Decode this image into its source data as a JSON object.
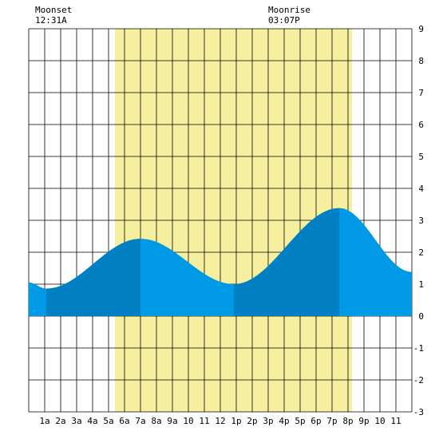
{
  "header": {
    "moonset_label": "Moonset",
    "moonset_time": "12:31A",
    "moonrise_label": "Moonrise",
    "moonrise_time": "03:07P"
  },
  "colors": {
    "daylight": "#f5ef9f",
    "tide_rising": "#0099e6",
    "tide_falling": "#0080c2",
    "grid": "#000000",
    "background": "#ffffff"
  },
  "chart_data": {
    "type": "area",
    "title": "",
    "xlabel": "",
    "ylabel": "",
    "xlim": [
      0,
      24
    ],
    "ylim": [
      -3,
      9
    ],
    "x_ticks": [
      {
        "x": 1,
        "label": "1a"
      },
      {
        "x": 2,
        "label": "2a"
      },
      {
        "x": 3,
        "label": "3a"
      },
      {
        "x": 4,
        "label": "4a"
      },
      {
        "x": 5,
        "label": "5a"
      },
      {
        "x": 6,
        "label": "6a"
      },
      {
        "x": 7,
        "label": "7a"
      },
      {
        "x": 8,
        "label": "8a"
      },
      {
        "x": 9,
        "label": "9a"
      },
      {
        "x": 10,
        "label": "10"
      },
      {
        "x": 11,
        "label": "11"
      },
      {
        "x": 12,
        "label": "12"
      },
      {
        "x": 13,
        "label": "1p"
      },
      {
        "x": 14,
        "label": "2p"
      },
      {
        "x": 15,
        "label": "3p"
      },
      {
        "x": 16,
        "label": "4p"
      },
      {
        "x": 17,
        "label": "5p"
      },
      {
        "x": 18,
        "label": "6p"
      },
      {
        "x": 19,
        "label": "7p"
      },
      {
        "x": 20,
        "label": "8p"
      },
      {
        "x": 21,
        "label": "9p"
      },
      {
        "x": 22,
        "label": "10"
      },
      {
        "x": 23,
        "label": "11"
      }
    ],
    "y_ticks": [
      -3,
      -2,
      -1,
      0,
      1,
      2,
      3,
      4,
      5,
      6,
      7,
      8,
      9
    ],
    "daylight": {
      "start": 5.4,
      "end": 20.25
    },
    "tide_extremes": [
      {
        "x": 1.1,
        "y": 0.86,
        "kind": "low"
      },
      {
        "x": 7.0,
        "y": 2.42,
        "kind": "high"
      },
      {
        "x": 12.85,
        "y": 1.0,
        "kind": "low"
      },
      {
        "x": 19.45,
        "y": 3.38,
        "kind": "high"
      }
    ],
    "series": [
      {
        "values": [
          {
            "x": 0,
            "y": 1.05
          },
          {
            "x": 1.1,
            "y": 0.86
          },
          {
            "x": 7.0,
            "y": 2.42
          },
          {
            "x": 12.85,
            "y": 1.0
          },
          {
            "x": 19.45,
            "y": 3.38
          },
          {
            "x": 24,
            "y": 1.38
          }
        ]
      }
    ],
    "grid": true
  }
}
